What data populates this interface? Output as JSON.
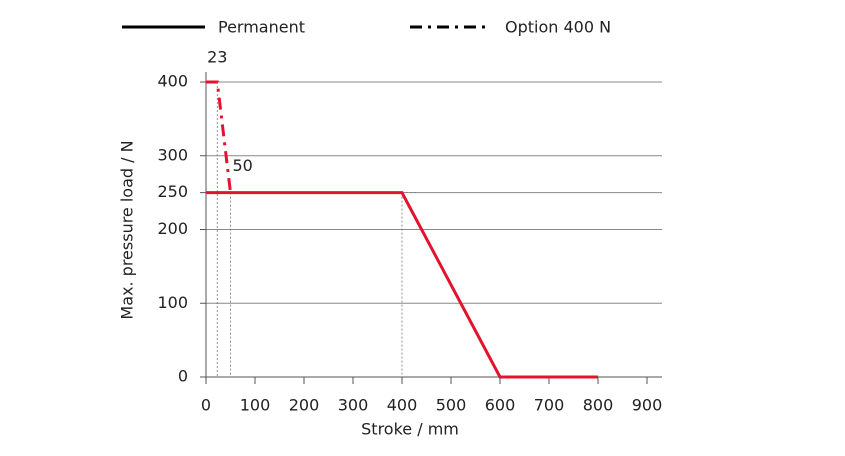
{
  "chart_data": {
    "type": "line",
    "xlabel": "Stroke / mm",
    "ylabel": "Max. pressure load / N",
    "xlim": [
      0,
      900
    ],
    "xticks": [
      0,
      100,
      200,
      300,
      400,
      500,
      600,
      700,
      800,
      900
    ],
    "ylim": [
      0,
      400
    ],
    "yticks": [
      0,
      100,
      200,
      250,
      300,
      400
    ],
    "grid": true,
    "legend": "top",
    "legend_color": "#000000",
    "series": [
      {
        "name": "Permanent",
        "color": "#e2142d",
        "style": "solid",
        "x": [
          0,
          400,
          600,
          800
        ],
        "values": [
          250,
          250,
          0,
          0
        ]
      },
      {
        "name": "Option 400 N",
        "color": "#e2142d",
        "style": "dashdot",
        "x": [
          0,
          23,
          50
        ],
        "values": [
          400,
          400,
          250
        ]
      }
    ],
    "annotations": [
      "23",
      "50"
    ]
  }
}
